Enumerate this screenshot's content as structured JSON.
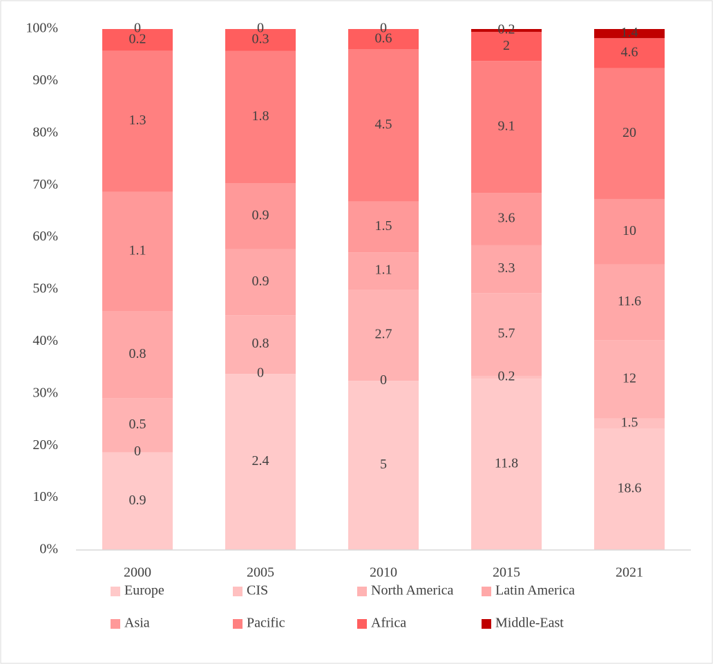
{
  "chart_data": {
    "type": "stacked_bar_100",
    "categories": [
      "2000",
      "2005",
      "2010",
      "2015",
      "2021"
    ],
    "series": [
      {
        "name": "Europe",
        "color": "#ffc9c9",
        "values": [
          0.9,
          2.4,
          5,
          11.8,
          18.6
        ]
      },
      {
        "name": "CIS",
        "color": "#ffc0c0",
        "values": [
          0,
          0,
          0,
          0.2,
          1.5
        ]
      },
      {
        "name": "North America",
        "color": "#ffb3b3",
        "values": [
          0.5,
          0.8,
          2.7,
          5.7,
          12
        ]
      },
      {
        "name": "Latin America",
        "color": "#ffa8a8",
        "values": [
          0.8,
          0.9,
          1.1,
          3.3,
          11.6
        ]
      },
      {
        "name": "Asia",
        "color": "#ff9999",
        "values": [
          1.1,
          0.9,
          1.5,
          3.6,
          10
        ]
      },
      {
        "name": "Pacific",
        "color": "#ff8080",
        "values": [
          1.3,
          1.8,
          4.5,
          9.1,
          20
        ]
      },
      {
        "name": "Africa",
        "color": "#ff5e5e",
        "values": [
          0.2,
          0.3,
          0.6,
          2,
          4.6
        ]
      },
      {
        "name": "Middle-East",
        "color": "#c00000",
        "values": [
          0,
          0,
          0,
          0.2,
          1.4
        ]
      }
    ],
    "ylim": [
      0,
      100
    ],
    "yticks": [
      {
        "value": 0,
        "label": "0%"
      },
      {
        "value": 10,
        "label": "10%"
      },
      {
        "value": 20,
        "label": "20%"
      },
      {
        "value": 30,
        "label": "30%"
      },
      {
        "value": 40,
        "label": "40%"
      },
      {
        "value": 50,
        "label": "50%"
      },
      {
        "value": 60,
        "label": "60%"
      },
      {
        "value": 70,
        "label": "70%"
      },
      {
        "value": 80,
        "label": "80%"
      },
      {
        "value": 90,
        "label": "90%"
      },
      {
        "value": 100,
        "label": "100%"
      }
    ],
    "grid": false,
    "legend": "bottom"
  }
}
